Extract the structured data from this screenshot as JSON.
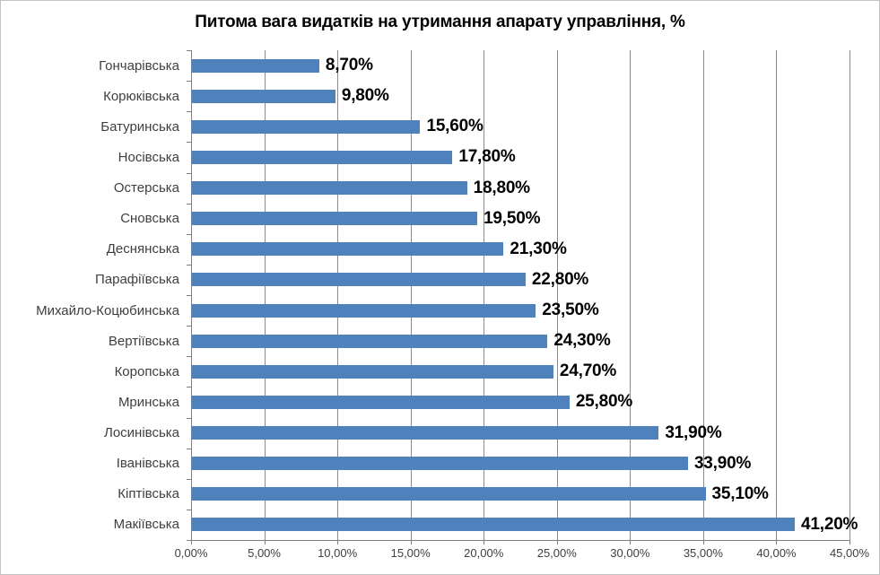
{
  "chart_data": {
    "type": "bar",
    "orientation": "horizontal",
    "title": "Питома вага видатків на утримання апарату управління, %",
    "categories": [
      "Гончарівська",
      "Корюківська",
      "Батуринська",
      "Носівська",
      "Остерська",
      "Сновська",
      "Деснянська",
      "Парафіївська",
      "Михайло-Коцюбинська",
      "Вертіївська",
      "Коропська",
      "Мринська",
      "Лосинівська",
      "Іванівська",
      "Кіптівська",
      "Макіївська"
    ],
    "values": [
      8.7,
      9.8,
      15.6,
      17.8,
      18.8,
      19.5,
      21.3,
      22.8,
      23.5,
      24.3,
      24.7,
      25.8,
      31.9,
      33.9,
      35.1,
      41.2
    ],
    "value_labels": [
      "8,70%",
      "9,80%",
      "15,60%",
      "17,80%",
      "18,80%",
      "19,50%",
      "21,30%",
      "22,80%",
      "23,50%",
      "24,30%",
      "24,70%",
      "25,80%",
      "31,90%",
      "33,90%",
      "35,10%",
      "41,20%"
    ],
    "x_tick_labels": [
      "0,00%",
      "5,00%",
      "10,00%",
      "15,00%",
      "20,00%",
      "25,00%",
      "30,00%",
      "35,00%",
      "40,00%",
      "45,00%"
    ],
    "xlim": [
      0,
      45
    ],
    "grid": true,
    "legend": "none",
    "colors": {
      "bar": "#4F81BD",
      "gridline": "#8C8C8C",
      "axis_line": "#7F7F7F",
      "title_text": "#000000",
      "category_text": "#3F3F3F",
      "value_text": "#000000",
      "chart_border": "#C3C3C3",
      "background": "#FFFFFF"
    }
  }
}
